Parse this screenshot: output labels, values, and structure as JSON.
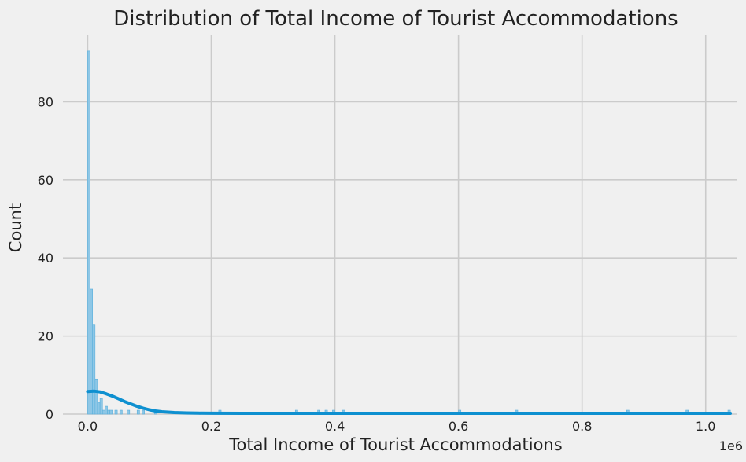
{
  "chart_data": {
    "type": "bar",
    "subtype": "histogram-with-kde",
    "title": "Distribution of Total Income of Tourist Accommodations",
    "xlabel": "Total Income of Tourist Accommodations",
    "ylabel": "Count",
    "x_scale_note": "1e6",
    "xlim": [
      -40000,
      1050000
    ],
    "ylim": [
      0,
      97
    ],
    "grid": true,
    "bar_color": "#8ec7e6",
    "bar_edge": "#5ab0dc",
    "kde_color": "#0e90d0",
    "x_ticks": [
      {
        "value": 0,
        "label": "0.0"
      },
      {
        "value": 200000,
        "label": "0.2"
      },
      {
        "value": 400000,
        "label": "0.4"
      },
      {
        "value": 600000,
        "label": "0.6"
      },
      {
        "value": 800000,
        "label": "0.8"
      },
      {
        "value": 1000000,
        "label": "1.0"
      }
    ],
    "y_ticks": [
      {
        "value": 0,
        "label": "0"
      },
      {
        "value": 20,
        "label": "20"
      },
      {
        "value": 40,
        "label": "40"
      },
      {
        "value": 60,
        "label": "60"
      },
      {
        "value": 80,
        "label": "80"
      }
    ],
    "bin_width": 4000,
    "bins": [
      {
        "x0": 0,
        "count": 93
      },
      {
        "x0": 4000,
        "count": 32
      },
      {
        "x0": 8000,
        "count": 23
      },
      {
        "x0": 12000,
        "count": 9
      },
      {
        "x0": 16000,
        "count": 3
      },
      {
        "x0": 20000,
        "count": 4
      },
      {
        "x0": 24000,
        "count": 1
      },
      {
        "x0": 28000,
        "count": 2
      },
      {
        "x0": 32000,
        "count": 1
      },
      {
        "x0": 36000,
        "count": 1
      },
      {
        "x0": 44000,
        "count": 1
      },
      {
        "x0": 52000,
        "count": 1
      },
      {
        "x0": 64000,
        "count": 1
      },
      {
        "x0": 80000,
        "count": 1
      },
      {
        "x0": 88000,
        "count": 1
      },
      {
        "x0": 108000,
        "count": 1
      },
      {
        "x0": 212000,
        "count": 1
      },
      {
        "x0": 336000,
        "count": 1
      },
      {
        "x0": 372000,
        "count": 1
      },
      {
        "x0": 384000,
        "count": 1
      },
      {
        "x0": 396000,
        "count": 1
      },
      {
        "x0": 412000,
        "count": 1
      },
      {
        "x0": 600000,
        "count": 1
      },
      {
        "x0": 692000,
        "count": 1
      },
      {
        "x0": 872000,
        "count": 1
      },
      {
        "x0": 968000,
        "count": 1
      },
      {
        "x0": 1036000,
        "count": 1
      }
    ],
    "kde": {
      "x": [
        0,
        10000,
        20000,
        30000,
        40000,
        50000,
        60000,
        70000,
        80000,
        90000,
        100000,
        110000,
        120000,
        140000,
        160000,
        180000,
        200000,
        250000,
        300000,
        400000,
        500000,
        600000,
        800000,
        1000000,
        1040000
      ],
      "y": [
        5.8,
        5.9,
        5.7,
        5.2,
        4.6,
        3.9,
        3.2,
        2.6,
        2.0,
        1.5,
        1.1,
        0.8,
        0.6,
        0.4,
        0.3,
        0.25,
        0.22,
        0.2,
        0.2,
        0.2,
        0.2,
        0.2,
        0.2,
        0.2,
        0.2
      ]
    }
  }
}
